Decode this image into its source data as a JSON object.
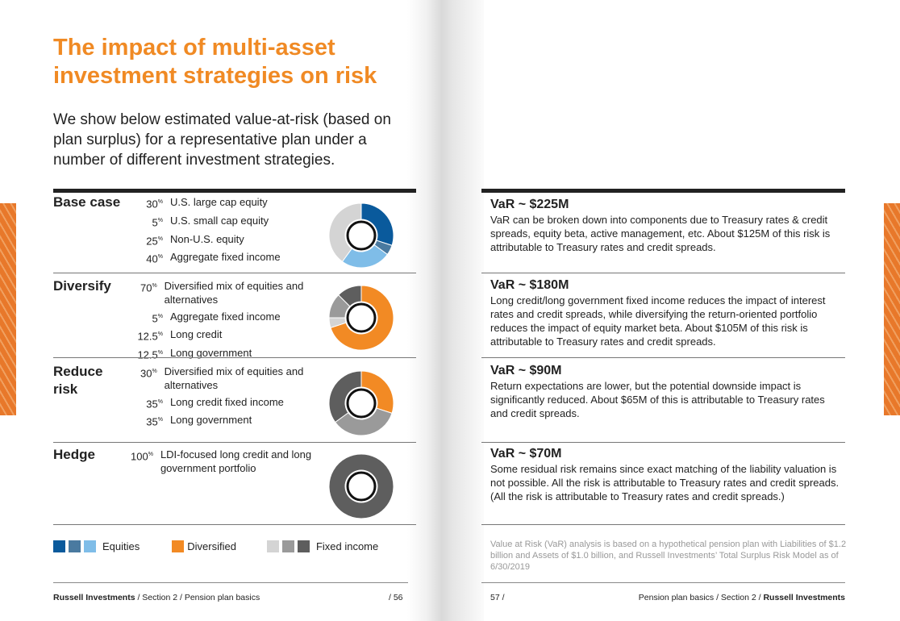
{
  "left": {
    "title": "The impact of multi-asset investment strategies on risk",
    "intro": "We show below estimated value-at-risk (based on plan surplus) for a representative plan under a number of different investment strategies.",
    "strategies": [
      {
        "name": "Base case",
        "allocations": [
          {
            "pct": "30",
            "label": "U.S. large cap equity"
          },
          {
            "pct": "5",
            "label": "U.S. small cap equity"
          },
          {
            "pct": "25",
            "label": "Non-U.S. equity"
          },
          {
            "pct": "40",
            "label": "Aggregate fixed income"
          }
        ],
        "donut": [
          {
            "value": 30,
            "color": "#0a5a9c"
          },
          {
            "value": 5,
            "color": "#4a7aa0"
          },
          {
            "value": 25,
            "color": "#7fbde8"
          },
          {
            "value": 40,
            "color": "#d4d4d4"
          }
        ]
      },
      {
        "name": "Diversify",
        "allocations": [
          {
            "pct": "70",
            "label": "Diversified mix of equities and alternatives"
          },
          {
            "pct": "5",
            "label": "Aggregate fixed income"
          },
          {
            "pct": "12.5",
            "label": "Long credit"
          },
          {
            "pct": "12.5",
            "label": "Long government"
          }
        ],
        "donut": [
          {
            "value": 70,
            "color": "#f28a24"
          },
          {
            "value": 5,
            "color": "#d4d4d4"
          },
          {
            "value": 12.5,
            "color": "#9a9a9a"
          },
          {
            "value": 12.5,
            "color": "#5e5e5e"
          }
        ]
      },
      {
        "name": "Reduce risk",
        "allocations": [
          {
            "pct": "30",
            "label": "Diversified mix of equities and alternatives"
          },
          {
            "pct": "35",
            "label": "Long credit fixed income"
          },
          {
            "pct": "35",
            "label": "Long government"
          }
        ],
        "donut": [
          {
            "value": 30,
            "color": "#f28a24"
          },
          {
            "value": 35,
            "color": "#9a9a9a"
          },
          {
            "value": 35,
            "color": "#5e5e5e"
          }
        ]
      },
      {
        "name": "Hedge",
        "allocations": [
          {
            "pct": "100",
            "label": "LDI-focused long credit and long government portfolio"
          }
        ],
        "donut": [
          {
            "value": 100,
            "color": "#5e5e5e"
          }
        ]
      }
    ],
    "legend": [
      {
        "label": "Equities",
        "colors": [
          "#0a5a9c",
          "#4a7aa0",
          "#7fbde8"
        ]
      },
      {
        "label": "Diversified",
        "colors": [
          "#f28a24"
        ]
      },
      {
        "label": "Fixed income",
        "colors": [
          "#d4d4d4",
          "#9a9a9a",
          "#5e5e5e"
        ]
      }
    ],
    "footer": {
      "brand": "Russell Investments",
      "path": " / Section 2 / Pension plan basics",
      "page": "/ 56"
    }
  },
  "right": {
    "var": [
      {
        "title": "VaR ~ $225M",
        "text": "VaR can be broken down into components due to Treasury rates & credit spreads, equity beta, active management, etc. About $125M of this risk is attributable to Treasury rates and credit spreads."
      },
      {
        "title": "VaR ~ $180M",
        "text": "Long credit/long government fixed income reduces the impact of interest rates and credit spreads, while diversifying the return-oriented portfolio reduces the impact of equity market beta. About $105M of this risk is attributable to Treasury rates and credit spreads."
      },
      {
        "title": "VaR ~ $90M",
        "text": "Return expectations are lower, but the potential downside impact is significantly reduced. About $65M of this is attributable to Treasury rates and credit spreads."
      },
      {
        "title": "VaR ~ $70M",
        "text": "Some residual risk remains since exact matching of the liability valuation is not possible. All the risk is attributable to Treasury rates and credit spreads.",
        "text2": "(All the risk is attributable to Treasury rates and credit spreads.)"
      }
    ],
    "note": "Value at Risk (VaR) analysis is based on a hypothetical pension plan with Liabilities of $1.2 billion and Assets of $1.0 billion, and Russell Investments’ Total Surplus Risk Model as of 6/30/2019",
    "footer": {
      "page": "57 /",
      "path": "Pension plan basics / Section 2 / ",
      "brand": "Russell Investments"
    }
  }
}
